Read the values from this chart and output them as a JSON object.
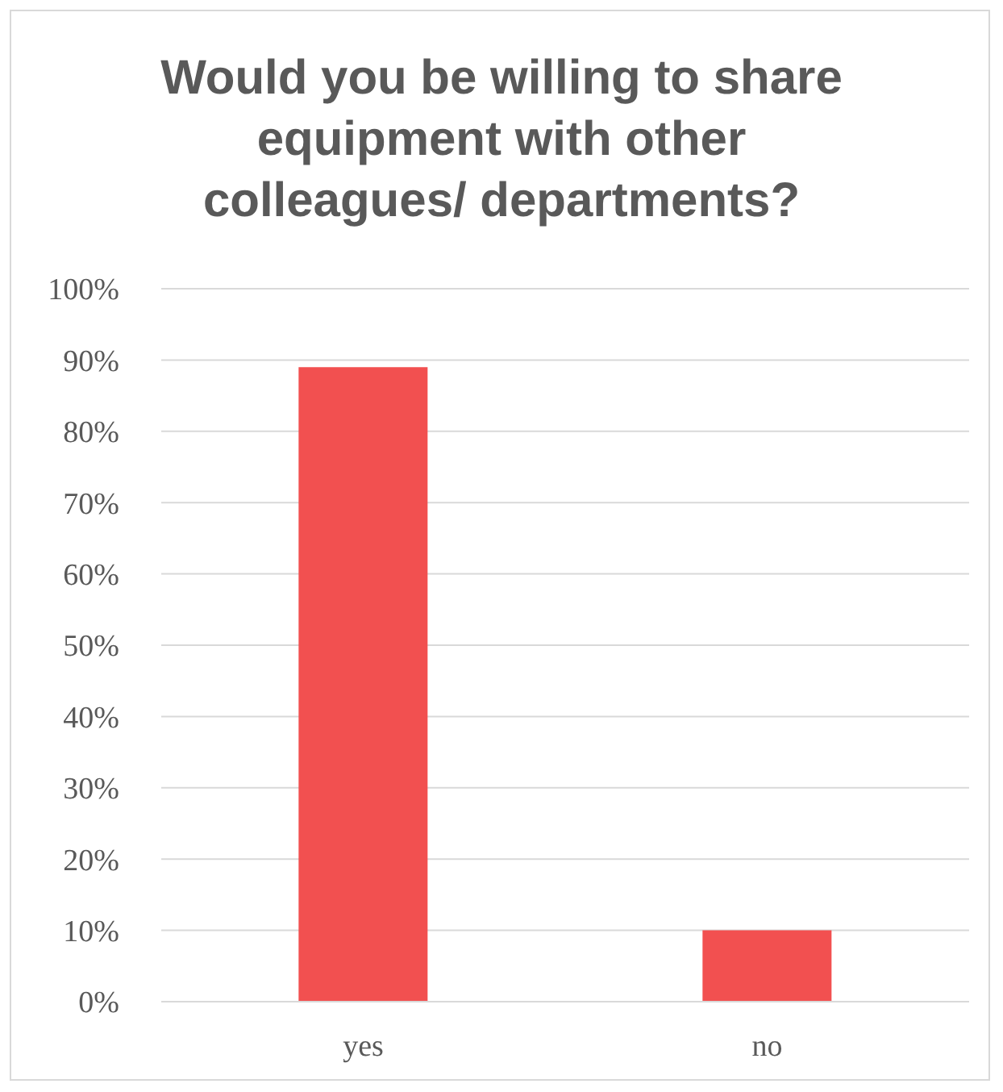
{
  "chart_data": {
    "type": "bar",
    "title": "Would you be willing to share equipment with other colleagues/ departments?",
    "categories": [
      "yes",
      "no"
    ],
    "values": [
      89,
      10
    ],
    "color": "#f25050",
    "ylim": [
      0,
      100
    ],
    "yticks": [
      {
        "value": 0,
        "label": "0%"
      },
      {
        "value": 10,
        "label": "10%"
      },
      {
        "value": 20,
        "label": "20%"
      },
      {
        "value": 30,
        "label": "30%"
      },
      {
        "value": 40,
        "label": "40%"
      },
      {
        "value": 50,
        "label": "50%"
      },
      {
        "value": 60,
        "label": "60%"
      },
      {
        "value": 70,
        "label": "70%"
      },
      {
        "value": 80,
        "label": "80%"
      },
      {
        "value": 90,
        "label": "90%"
      },
      {
        "value": 100,
        "label": "100%"
      }
    ],
    "grid": "y"
  }
}
